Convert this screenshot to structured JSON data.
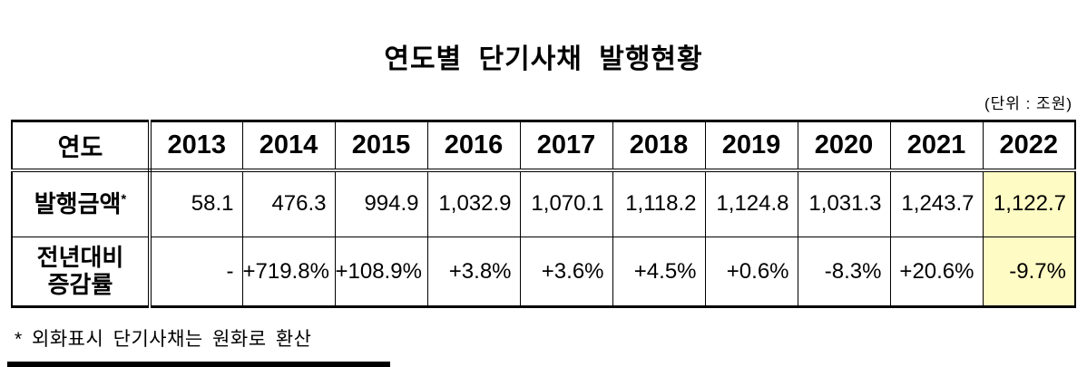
{
  "page": {
    "title": "연도별 단기사채 발행현황",
    "unit_note": "(단위 : 조원)",
    "footnote": "* 외화표시 단기사채는 원화로 환산"
  },
  "table": {
    "header": {
      "label": "연도",
      "years": [
        "2013",
        "2014",
        "2015",
        "2016",
        "2017",
        "2018",
        "2019",
        "2020",
        "2021",
        "2022"
      ]
    },
    "rows": [
      {
        "label": "발행금액",
        "label_sup": "*",
        "values": [
          "58.1",
          "476.3",
          "994.9",
          "1,032.9",
          "1,070.1",
          "1,118.2",
          "1,124.8",
          "1,031.3",
          "1,243.7",
          "1,122.7"
        ]
      },
      {
        "label": "전년대비 증감률",
        "values": [
          "-",
          "+719.8%",
          "+108.9%",
          "+3.8%",
          "+3.6%",
          "+4.5%",
          "+0.6%",
          "-8.3%",
          "+20.6%",
          "-9.7%"
        ]
      }
    ],
    "highlight_column": "2022",
    "highlight_color": "#FFFBC4",
    "border_color": "#000000"
  }
}
